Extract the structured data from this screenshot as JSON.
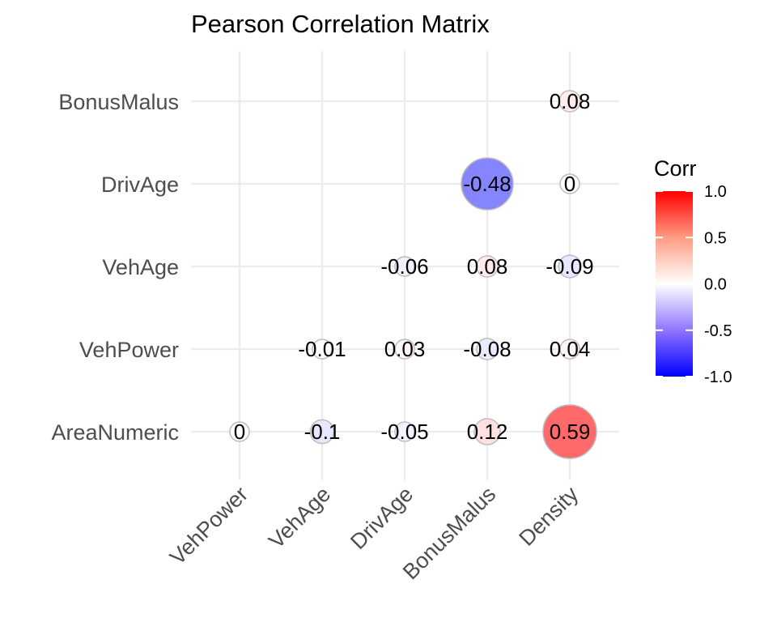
{
  "chart_data": {
    "type": "scatter",
    "title": "Pearson Correlation Matrix",
    "xlabel": "",
    "ylabel": "",
    "x_categories": [
      "VehPower",
      "VehAge",
      "DrivAge",
      "BonusMalus",
      "Density"
    ],
    "y_categories": [
      "AreaNumeric",
      "VehPower",
      "VehAge",
      "DrivAge",
      "BonusMalus"
    ],
    "cells": [
      {
        "x": "Density",
        "y": "BonusMalus",
        "value": 0.08,
        "label": "0.08"
      },
      {
        "x": "BonusMalus",
        "y": "DrivAge",
        "value": -0.48,
        "label": "-0.48"
      },
      {
        "x": "Density",
        "y": "DrivAge",
        "value": 0.0,
        "label": "0"
      },
      {
        "x": "DrivAge",
        "y": "VehAge",
        "value": -0.06,
        "label": "-0.06"
      },
      {
        "x": "BonusMalus",
        "y": "VehAge",
        "value": 0.08,
        "label": "0.08"
      },
      {
        "x": "Density",
        "y": "VehAge",
        "value": -0.09,
        "label": "-0.09"
      },
      {
        "x": "VehAge",
        "y": "VehPower",
        "value": -0.01,
        "label": "-0.01"
      },
      {
        "x": "DrivAge",
        "y": "VehPower",
        "value": 0.03,
        "label": "0.03"
      },
      {
        "x": "BonusMalus",
        "y": "VehPower",
        "value": -0.08,
        "label": "-0.08"
      },
      {
        "x": "Density",
        "y": "VehPower",
        "value": 0.04,
        "label": "0.04"
      },
      {
        "x": "VehPower",
        "y": "AreaNumeric",
        "value": 0.0,
        "label": "0"
      },
      {
        "x": "VehAge",
        "y": "AreaNumeric",
        "value": -0.1,
        "label": "-0.1"
      },
      {
        "x": "DrivAge",
        "y": "AreaNumeric",
        "value": -0.05,
        "label": "-0.05"
      },
      {
        "x": "BonusMalus",
        "y": "AreaNumeric",
        "value": 0.12,
        "label": "0.12"
      },
      {
        "x": "Density",
        "y": "AreaNumeric",
        "value": 0.59,
        "label": "0.59"
      }
    ],
    "legend": {
      "title": "Corr",
      "placement": "right",
      "ticks": [
        1.0,
        0.5,
        0.0,
        -0.5,
        -1.0
      ],
      "tick_labels": [
        "1.0",
        "0.5",
        "0.0",
        "-0.5",
        "-1.0"
      ],
      "range": [
        -1,
        1
      ]
    },
    "colors": {
      "low": "#0000ff",
      "mid": "#ffffff",
      "high": "#ff0000",
      "grid": "#ebebeb",
      "circle_outline": "#bdbdbd"
    },
    "grid": true
  }
}
